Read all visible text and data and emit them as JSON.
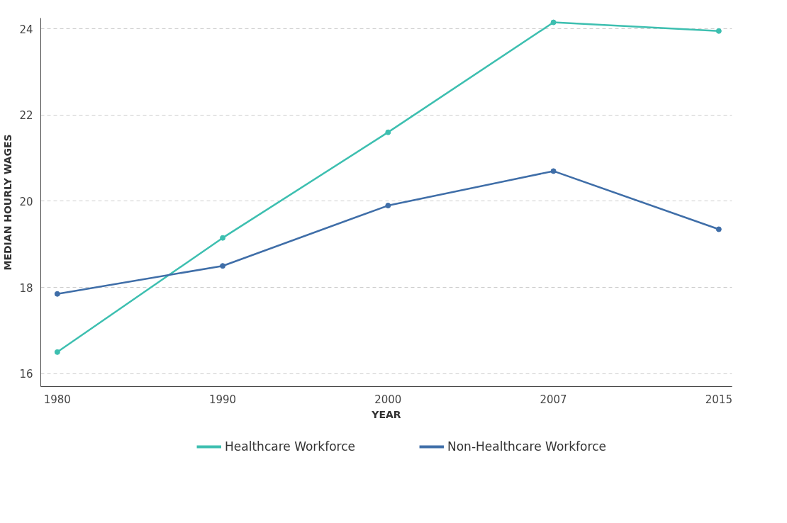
{
  "chart_data": {
    "type": "line",
    "xlabel": "YEAR",
    "ylabel": "MEDIAN HOURLY WAGES",
    "categories": [
      "1980",
      "1990",
      "2000",
      "2007",
      "2015"
    ],
    "series": [
      {
        "name": "Healthcare Workforce",
        "color": "#3dbfb0",
        "values": [
          16.5,
          19.15,
          21.6,
          24.15,
          23.95
        ]
      },
      {
        "name": "Non-Healthcare Workforce",
        "color": "#3f6ea8",
        "values": [
          17.85,
          18.5,
          19.9,
          20.7,
          19.35
        ]
      }
    ],
    "ylim": [
      15.7,
      24.25
    ],
    "yticks": [
      16,
      18,
      20,
      22,
      24
    ],
    "grid": "y",
    "legend": "bottom",
    "marker": "circle",
    "line_style": "solid"
  }
}
